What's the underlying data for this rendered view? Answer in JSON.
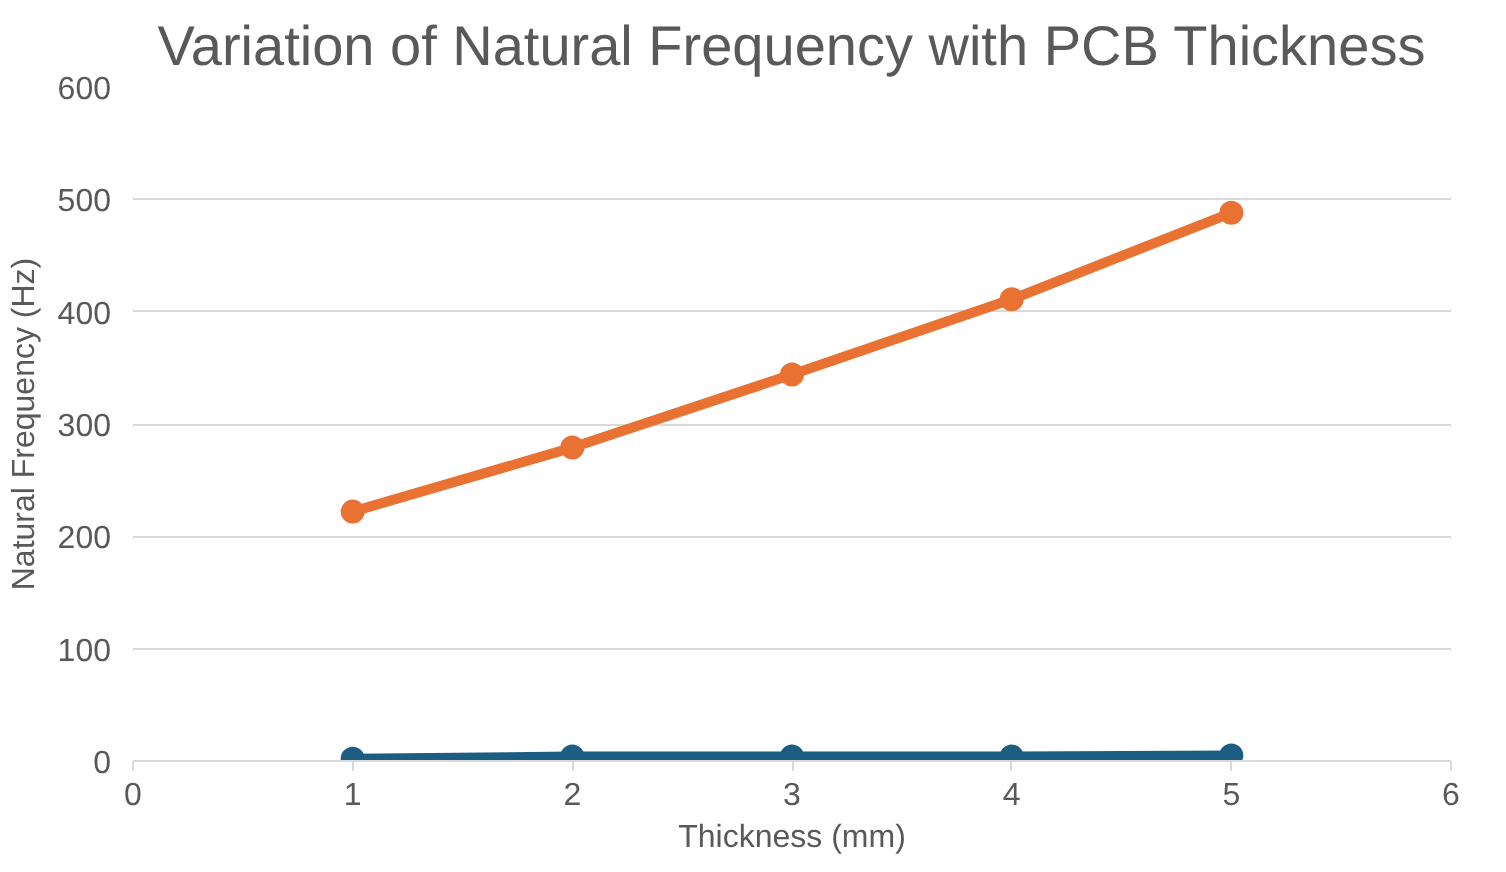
{
  "chart_data": {
    "type": "line",
    "title": "Variation of Natural Frequency with PCB Thickness",
    "xlabel": "Thickness (mm)",
    "ylabel": "Natural Frequency (Hz)",
    "x": [
      1,
      2,
      3,
      4,
      5
    ],
    "series": [
      {
        "color": "#1b5e82",
        "values": [
          2,
          4,
          4,
          4,
          5
        ]
      },
      {
        "color": "#e97132",
        "values": [
          222,
          279,
          344,
          411,
          488
        ]
      }
    ],
    "xlim": [
      0,
      6
    ],
    "xticks": [
      0,
      1,
      2,
      3,
      4,
      5,
      6
    ],
    "ylim": [
      0,
      600
    ],
    "yticks": [
      0,
      100,
      200,
      300,
      400,
      500,
      600
    ],
    "grid": "y",
    "marker": "circle",
    "line_style": "solid"
  }
}
